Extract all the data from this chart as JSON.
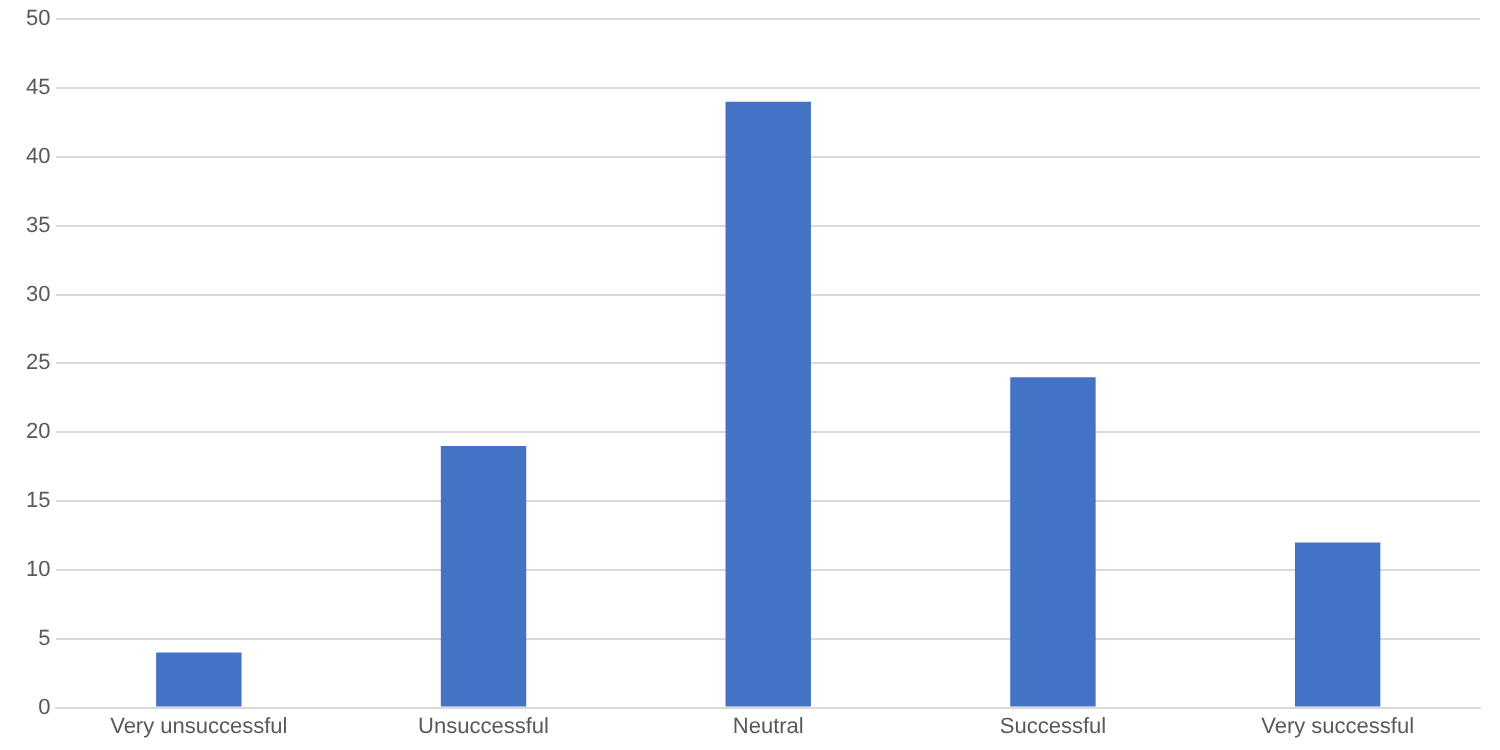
{
  "chart_data": {
    "type": "bar",
    "categories": [
      "Very unsuccessful",
      "Unsuccessful",
      "Neutral",
      "Successful",
      "Very successful"
    ],
    "values": [
      4,
      19,
      44,
      24,
      12
    ],
    "color": "#4472c4",
    "ylim": [
      0,
      50
    ],
    "yticks": [
      0,
      5,
      10,
      15,
      20,
      25,
      30,
      35,
      40,
      45,
      50
    ],
    "grid": "y",
    "legend": false
  }
}
